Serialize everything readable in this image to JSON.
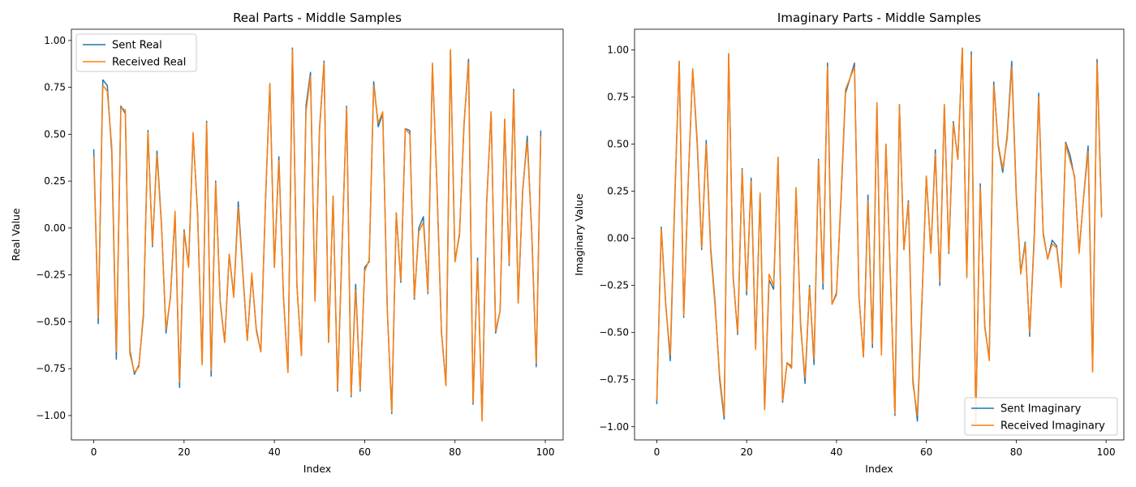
{
  "colors": {
    "sent": "#1f77b4",
    "received": "#ff7f0e",
    "axis": "#000000",
    "legend_border": "#cccccc"
  },
  "chart_data": [
    {
      "type": "line",
      "title": "Real Parts - Middle Samples",
      "xlabel": "Index",
      "ylabel": "Real Value",
      "xlim": [
        -4.95,
        103.95
      ],
      "ylim": [
        -1.13,
        1.06
      ],
      "xticks": [
        0,
        20,
        40,
        60,
        80,
        100
      ],
      "yticks": [
        -1.0,
        -0.75,
        -0.5,
        -0.25,
        0.0,
        0.25,
        0.5,
        0.75,
        1.0
      ],
      "ytick_labels": [
        "−1.00",
        "−0.75",
        "−0.50",
        "−0.25",
        "0.00",
        "0.25",
        "0.50",
        "0.75",
        "1.00"
      ],
      "grid": false,
      "legend": "upper-left",
      "series": [
        {
          "name": "Sent Real",
          "color": "#1f77b4",
          "values": [
            0.42,
            -0.51,
            0.79,
            0.76,
            0.4,
            -0.7,
            0.65,
            0.61,
            -0.65,
            -0.78,
            -0.73,
            -0.47,
            0.52,
            -0.1,
            0.41,
            0.02,
            -0.56,
            -0.36,
            0.08,
            -0.85,
            -0.01,
            -0.2,
            0.5,
            0.08,
            -0.72,
            0.57,
            -0.79,
            0.25,
            -0.39,
            -0.61,
            -0.14,
            -0.36,
            0.14,
            -0.23,
            -0.6,
            -0.25,
            -0.54,
            -0.66,
            0.12,
            0.77,
            -0.21,
            0.38,
            -0.36,
            -0.77,
            0.96,
            -0.31,
            -0.68,
            0.65,
            0.83,
            -0.39,
            0.53,
            0.89,
            -0.61,
            0.17,
            -0.87,
            -0.09,
            0.65,
            -0.9,
            -0.3,
            -0.87,
            -0.21,
            -0.18,
            0.78,
            0.54,
            0.61,
            -0.43,
            -0.99,
            0.08,
            -0.29,
            0.53,
            0.52,
            -0.38,
            0.0,
            0.06,
            -0.35,
            0.87,
            0.23,
            -0.55,
            -0.84,
            0.95,
            -0.18,
            -0.03,
            0.55,
            0.9,
            -0.94,
            -0.16,
            -1.02,
            0.13,
            0.62,
            -0.56,
            -0.44,
            0.58,
            -0.2,
            0.74,
            -0.4,
            0.2,
            0.49,
            -0.03,
            -0.74,
            0.52
          ]
        },
        {
          "name": "Received Real",
          "color": "#ff7f0e",
          "values": [
            0.38,
            -0.48,
            0.76,
            0.73,
            0.43,
            -0.66,
            0.64,
            0.63,
            -0.67,
            -0.77,
            -0.74,
            -0.45,
            0.51,
            -0.09,
            0.39,
            0.01,
            -0.54,
            -0.37,
            0.09,
            -0.82,
            -0.02,
            -0.21,
            0.51,
            0.07,
            -0.73,
            0.56,
            -0.76,
            0.24,
            -0.4,
            -0.61,
            -0.14,
            -0.37,
            0.11,
            -0.24,
            -0.6,
            -0.24,
            -0.55,
            -0.66,
            0.12,
            0.77,
            -0.21,
            0.36,
            -0.36,
            -0.77,
            0.95,
            -0.31,
            -0.68,
            0.62,
            0.81,
            -0.39,
            0.52,
            0.88,
            -0.61,
            0.17,
            -0.86,
            -0.09,
            0.64,
            -0.89,
            -0.33,
            -0.86,
            -0.23,
            -0.17,
            0.76,
            0.56,
            0.62,
            -0.43,
            -0.98,
            0.08,
            -0.28,
            0.53,
            0.5,
            -0.37,
            -0.02,
            0.03,
            -0.34,
            0.88,
            0.23,
            -0.56,
            -0.84,
            0.95,
            -0.18,
            -0.04,
            0.56,
            0.88,
            -0.93,
            -0.18,
            -1.03,
            0.12,
            0.62,
            -0.55,
            -0.44,
            0.58,
            -0.19,
            0.73,
            -0.4,
            0.21,
            0.46,
            -0.02,
            -0.72,
            0.49
          ]
        }
      ]
    },
    {
      "type": "line",
      "title": "Imaginary Parts - Middle Samples",
      "xlabel": "Index",
      "ylabel": "Imaginary Value",
      "xlim": [
        -4.95,
        103.95
      ],
      "ylim": [
        -1.07,
        1.11
      ],
      "xticks": [
        0,
        20,
        40,
        60,
        80,
        100
      ],
      "yticks": [
        -1.0,
        -0.75,
        -0.5,
        -0.25,
        0.0,
        0.25,
        0.5,
        0.75,
        1.0
      ],
      "ytick_labels": [
        "−1.00",
        "−0.75",
        "−0.50",
        "−0.25",
        "0.00",
        "0.25",
        "0.50",
        "0.75",
        "1.00"
      ],
      "grid": false,
      "legend": "lower-right",
      "series": [
        {
          "name": "Sent Imaginary",
          "color": "#1f77b4",
          "values": [
            -0.88,
            0.06,
            -0.35,
            -0.65,
            0.2,
            0.94,
            -0.42,
            0.3,
            0.9,
            0.5,
            -0.06,
            0.52,
            -0.05,
            -0.35,
            -0.75,
            -0.96,
            0.98,
            -0.2,
            -0.51,
            0.37,
            -0.3,
            0.32,
            -0.58,
            0.24,
            -0.91,
            -0.22,
            -0.27,
            0.43,
            -0.87,
            -0.66,
            -0.68,
            0.26,
            -0.45,
            -0.77,
            -0.25,
            -0.67,
            0.42,
            -0.27,
            0.93,
            -0.35,
            -0.29,
            0.2,
            0.77,
            0.85,
            0.93,
            -0.31,
            -0.63,
            0.23,
            -0.58,
            0.72,
            -0.6,
            0.5,
            -0.2,
            -0.94,
            0.71,
            -0.06,
            0.2,
            -0.75,
            -0.97,
            -0.35,
            0.33,
            -0.07,
            0.47,
            -0.25,
            0.71,
            -0.08,
            0.62,
            0.42,
            1.01,
            -0.2,
            0.99,
            -0.98,
            0.29,
            -0.47,
            -0.64,
            0.83,
            0.49,
            0.35,
            0.55,
            0.94,
            0.24,
            -0.18,
            -0.02,
            -0.52,
            0.01,
            0.77,
            0.03,
            -0.11,
            -0.01,
            -0.04,
            -0.25,
            0.51,
            0.44,
            0.32,
            -0.07,
            0.22,
            0.49,
            -0.7,
            0.95,
            0.12
          ]
        },
        {
          "name": "Received Imaginary",
          "color": "#ff7f0e",
          "values": [
            -0.86,
            0.05,
            -0.36,
            -0.62,
            0.22,
            0.94,
            -0.41,
            0.3,
            0.9,
            0.52,
            -0.05,
            0.5,
            -0.07,
            -0.37,
            -0.73,
            -0.94,
            0.98,
            -0.21,
            -0.5,
            0.36,
            -0.28,
            0.3,
            -0.59,
            0.24,
            -0.91,
            -0.19,
            -0.25,
            0.43,
            -0.86,
            -0.66,
            -0.69,
            0.27,
            -0.47,
            -0.74,
            -0.26,
            -0.64,
            0.41,
            -0.24,
            0.91,
            -0.35,
            -0.3,
            0.22,
            0.79,
            0.85,
            0.91,
            -0.31,
            -0.63,
            0.2,
            -0.56,
            0.72,
            -0.62,
            0.5,
            -0.21,
            -0.93,
            0.71,
            -0.06,
            0.19,
            -0.77,
            -0.94,
            -0.33,
            0.33,
            -0.08,
            0.45,
            -0.23,
            0.71,
            -0.07,
            0.61,
            0.42,
            1.01,
            -0.21,
            0.97,
            -0.97,
            0.27,
            -0.46,
            -0.65,
            0.81,
            0.5,
            0.37,
            0.53,
            0.91,
            0.22,
            -0.19,
            -0.03,
            -0.5,
            -0.02,
            0.75,
            0.02,
            -0.11,
            -0.03,
            -0.05,
            -0.26,
            0.5,
            0.41,
            0.33,
            -0.08,
            0.22,
            0.46,
            -0.71,
            0.93,
            0.11
          ]
        }
      ]
    }
  ]
}
